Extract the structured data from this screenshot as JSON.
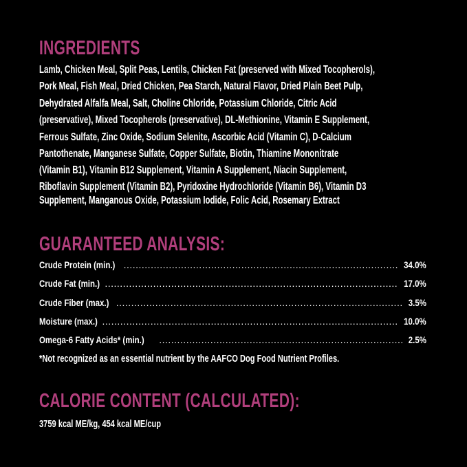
{
  "colors": {
    "background": "#000000",
    "heading": "#b13f7c",
    "text": "#ffffff"
  },
  "ingredients": {
    "title": "INGREDIENTS",
    "lines": [
      "Lamb, Chicken Meal, Split Peas, Lentils, Chicken Fat (preserved with Mixed Tocopherols),",
      "Pork Meal, Fish Meal, Dried Chicken, Pea Starch, Natural Flavor, Dried Plain Beet Pulp,",
      "Dehydrated Alfalfa Meal, Salt, Choline Chloride, Potassium Chloride, Citric Acid",
      "(preservative), Mixed Tocopherols (preservative), DL-Methionine, Vitamin E Supplement,",
      "Ferrous Sulfate, Zinc Oxide, Sodium Selenite, Ascorbic Acid (Vitamin C), D-Calcium",
      "Pantothenate, Manganese Sulfate, Copper Sulfate, Biotin, Thiamine Mononitrate",
      "(Vitamin B1), Vitamin B12 Supplement, Vitamin A Supplement, Niacin Supplement,",
      "Riboflavin Supplement (Vitamin B2), Pyridoxine Hydrochloride (Vitamin B6), Vitamin D3",
      "Supplement, Manganous Oxide, Potassium Iodide, Folic Acid, Rosemary Extract"
    ]
  },
  "analysis": {
    "title": "GUARANTEED ANALYSIS:",
    "rows": [
      {
        "label": "Crude Protein (min.)",
        "value": "34.0%"
      },
      {
        "label": "Crude Fat (min.)",
        "value": "17.0%"
      },
      {
        "label": "Crude Fiber (max.)",
        "value": "3.5%"
      },
      {
        "label": "Moisture (max.)",
        "value": "10.0%"
      },
      {
        "label": "Omega-6 Fatty Acids* (min.)",
        "value": "2.5%"
      }
    ],
    "footnote": "*Not recognized as an essential nutrient by the AAFCO Dog Food Nutrient Profiles."
  },
  "calorie": {
    "title": "CALORIE CONTENT (CALCULATED):",
    "text": "3759 kcal ME/kg, 454 kcal ME/cup"
  }
}
